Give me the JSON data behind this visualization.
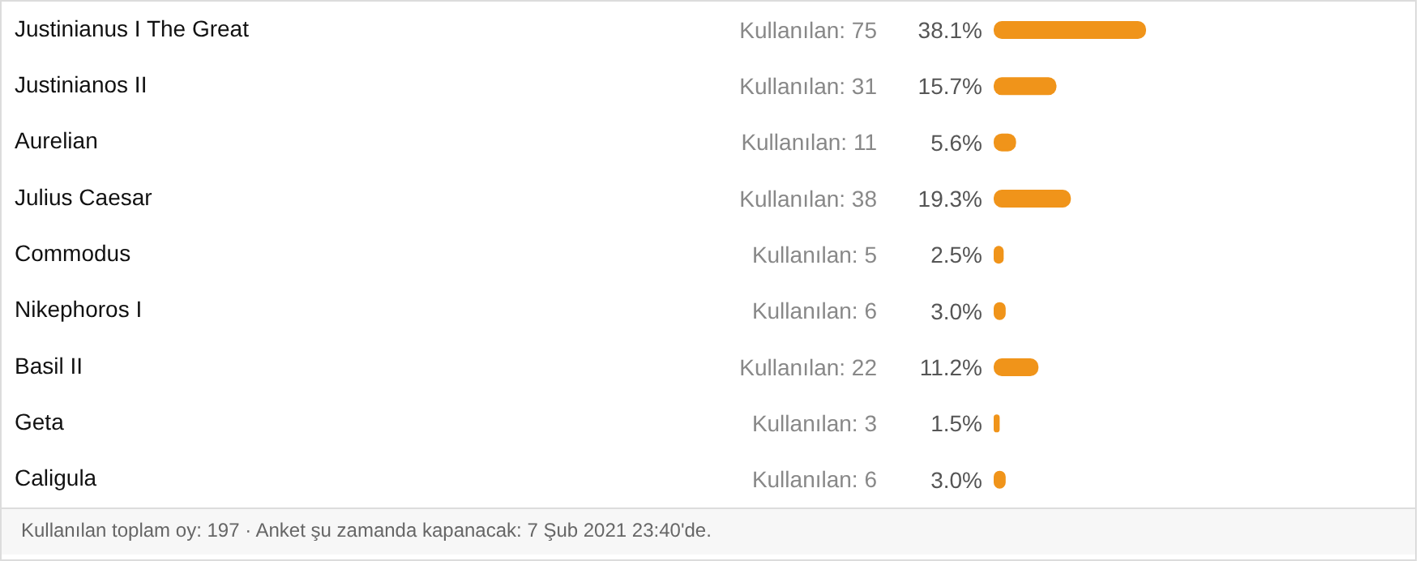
{
  "chart_data": {
    "type": "bar",
    "orientation": "horizontal",
    "categories": [
      "Justinianus I The Great",
      "Justinianos II",
      "Aurelian",
      "Julius Caesar",
      "Commodus",
      "Nikephoros I",
      "Basil II",
      "Geta",
      "Caligula"
    ],
    "series": [
      {
        "color": "#f0941a",
        "values": [
          38.1,
          15.7,
          5.6,
          19.3,
          2.5,
          3.0,
          11.2,
          1.5,
          3.0
        ],
        "value_labels": [
          "38.1%",
          "15.7%",
          "5.6%",
          "19.3%",
          "2.5%",
          "3.0%",
          "11.2%",
          "1.5%",
          "3.0%"
        ]
      }
    ],
    "annotations": [
      "Kullanılan: 75",
      "Kullanılan: 31",
      "Kullanılan: 11",
      "Kullanılan: 38",
      "Kullanılan: 5",
      "Kullanılan: 6",
      "Kullanılan: 22",
      "Kullanılan: 3",
      "Kullanılan: 6",
      "Kullanılan toplam oy: 197 · Anket şu zamanda kapanacak: 7 Şub 2021 23:40'de."
    ]
  }
}
